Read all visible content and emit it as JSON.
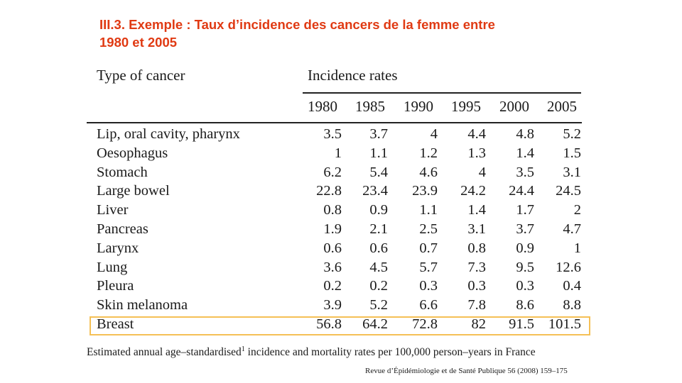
{
  "title": {
    "line1": "III.3.  Exemple : Taux d’incidence des cancers de la femme entre",
    "line2": "1980 et 2005"
  },
  "table": {
    "col_header_type": "Type of cancer",
    "col_header_rates": "Incidence rates",
    "years": [
      "1980",
      "1985",
      "1990",
      "1995",
      "2000",
      "2005"
    ],
    "rows": [
      {
        "cancer": "Lip, oral cavity, pharynx",
        "values": [
          "3.5",
          "3.7",
          "4",
          "4.4",
          "4.8",
          "5.2"
        ]
      },
      {
        "cancer": "Oesophagus",
        "values": [
          "1",
          "1.1",
          "1.2",
          "1.3",
          "1.4",
          "1.5"
        ]
      },
      {
        "cancer": "Stomach",
        "values": [
          "6.2",
          "5.4",
          "4.6",
          "4",
          "3.5",
          "3.1"
        ]
      },
      {
        "cancer": "Large bowel",
        "values": [
          "22.8",
          "23.4",
          "23.9",
          "24.2",
          "24.4",
          "24.5"
        ]
      },
      {
        "cancer": "Liver",
        "values": [
          "0.8",
          "0.9",
          "1.1",
          "1.4",
          "1.7",
          "2"
        ]
      },
      {
        "cancer": "Pancreas",
        "values": [
          "1.9",
          "2.1",
          "2.5",
          "3.1",
          "3.7",
          "4.7"
        ]
      },
      {
        "cancer": "Larynx",
        "values": [
          "0.6",
          "0.6",
          "0.7",
          "0.8",
          "0.9",
          "1"
        ]
      },
      {
        "cancer": "Lung",
        "values": [
          "3.6",
          "4.5",
          "5.7",
          "7.3",
          "9.5",
          "12.6"
        ]
      },
      {
        "cancer": "Pleura",
        "values": [
          "0.2",
          "0.2",
          "0.3",
          "0.3",
          "0.3",
          "0.4"
        ]
      },
      {
        "cancer": "Skin melanoma",
        "values": [
          "3.9",
          "5.2",
          "6.6",
          "7.8",
          "8.6",
          "8.8"
        ]
      },
      {
        "cancer": "Breast",
        "values": [
          "56.8",
          "64.2",
          "72.8",
          "82",
          "91.5",
          "101.5"
        ]
      }
    ]
  },
  "caption": {
    "before": "Estimated annual age–standardised",
    "sup": "1",
    "after": " incidence and mortality rates per 100,000 person–years in France"
  },
  "citation": "Revue d’Épidémiologie et de Santé Publique 56 (2008) 159–175",
  "colors": {
    "title": "#e03a13",
    "highlight": "#f5c056"
  }
}
